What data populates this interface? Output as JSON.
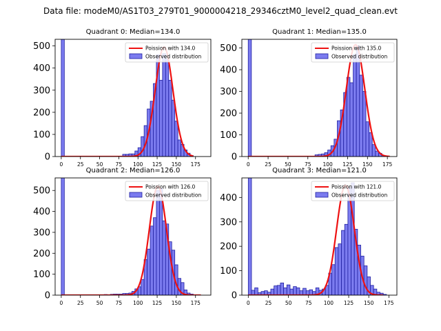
{
  "figure": {
    "suptitle": "Data file: modeM0/AS1T03_279T01_9000004218_29346cztM0_level2_quad_clean.evt"
  },
  "style": {
    "bar_fill": "#7b7bef",
    "bar_edge": "#1f1fa0",
    "curve_color": "#ee1111",
    "legend_border": "#cccccc"
  },
  "chart_data": [
    {
      "type": "bar",
      "title": "Quadrant 0: Median=134.0",
      "legend": [
        "Poission with 134.0",
        "Observed distribution"
      ],
      "legend_position": "top-right",
      "bin_width": 4,
      "xlim": [
        -8,
        195
      ],
      "ylim": [
        0,
        530
      ],
      "xticks": [
        0,
        25,
        50,
        75,
        100,
        125,
        150,
        175
      ],
      "yticks": [
        0,
        100,
        200,
        300,
        400,
        500
      ],
      "bins": [
        {
          "x": 0,
          "v": 530
        },
        {
          "x": 80,
          "v": 10
        },
        {
          "x": 84,
          "v": 10
        },
        {
          "x": 88,
          "v": 12
        },
        {
          "x": 92,
          "v": 12
        },
        {
          "x": 96,
          "v": 25
        },
        {
          "x": 100,
          "v": 40
        },
        {
          "x": 104,
          "v": 90
        },
        {
          "x": 108,
          "v": 140
        },
        {
          "x": 112,
          "v": 215
        },
        {
          "x": 116,
          "v": 250
        },
        {
          "x": 120,
          "v": 330
        },
        {
          "x": 124,
          "v": 460
        },
        {
          "x": 128,
          "v": 345
        },
        {
          "x": 132,
          "v": 465
        },
        {
          "x": 136,
          "v": 440
        },
        {
          "x": 140,
          "v": 345
        },
        {
          "x": 144,
          "v": 255
        },
        {
          "x": 148,
          "v": 160
        },
        {
          "x": 152,
          "v": 75
        },
        {
          "x": 156,
          "v": 55
        },
        {
          "x": 160,
          "v": 30
        },
        {
          "x": 164,
          "v": 15
        },
        {
          "x": 168,
          "v": 5
        }
      ],
      "poisson": {
        "mean": 134.0,
        "scale": 495,
        "sigma": 11.6,
        "x_range": [
          0,
          172
        ]
      }
    },
    {
      "type": "bar",
      "title": "Quadrant 1: Median=135.0",
      "legend": [
        "Poission with 135.0",
        "Observed distribution"
      ],
      "legend_position": "top-right",
      "bin_width": 4,
      "xlim": [
        -8,
        187
      ],
      "ylim": [
        0,
        540
      ],
      "xticks": [
        0,
        25,
        50,
        75,
        100,
        125,
        150,
        175
      ],
      "yticks": [
        0,
        100,
        200,
        300,
        400,
        500
      ],
      "bins": [
        {
          "x": 0,
          "v": 540
        },
        {
          "x": 84,
          "v": 8
        },
        {
          "x": 88,
          "v": 10
        },
        {
          "x": 92,
          "v": 12
        },
        {
          "x": 96,
          "v": 18
        },
        {
          "x": 100,
          "v": 30
        },
        {
          "x": 104,
          "v": 50
        },
        {
          "x": 108,
          "v": 80
        },
        {
          "x": 112,
          "v": 165
        },
        {
          "x": 116,
          "v": 215
        },
        {
          "x": 120,
          "v": 295
        },
        {
          "x": 124,
          "v": 365
        },
        {
          "x": 128,
          "v": 340
        },
        {
          "x": 132,
          "v": 470
        },
        {
          "x": 136,
          "v": 510
        },
        {
          "x": 140,
          "v": 375
        },
        {
          "x": 144,
          "v": 300
        },
        {
          "x": 148,
          "v": 160
        },
        {
          "x": 152,
          "v": 110
        },
        {
          "x": 156,
          "v": 55
        },
        {
          "x": 160,
          "v": 25
        },
        {
          "x": 164,
          "v": 15
        },
        {
          "x": 168,
          "v": 5
        }
      ],
      "poisson": {
        "mean": 135.0,
        "scale": 515,
        "sigma": 11.6,
        "x_range": [
          0,
          178
        ]
      }
    },
    {
      "type": "bar",
      "title": "Quadrant 2: Median=126.0",
      "legend": [
        "Poission with 126.0",
        "Observed distribution"
      ],
      "legend_position": "top-right",
      "bin_width": 4,
      "xlim": [
        -8,
        195
      ],
      "ylim": [
        0,
        560
      ],
      "xticks": [
        0,
        25,
        50,
        75,
        100,
        125,
        150,
        175
      ],
      "yticks": [
        0,
        100,
        200,
        300,
        400,
        500
      ],
      "bins": [
        {
          "x": 0,
          "v": 560
        },
        {
          "x": 56,
          "v": 3
        },
        {
          "x": 64,
          "v": 4
        },
        {
          "x": 68,
          "v": 5
        },
        {
          "x": 72,
          "v": 5
        },
        {
          "x": 76,
          "v": 5
        },
        {
          "x": 80,
          "v": 8
        },
        {
          "x": 84,
          "v": 8
        },
        {
          "x": 88,
          "v": 10
        },
        {
          "x": 92,
          "v": 18
        },
        {
          "x": 96,
          "v": 30
        },
        {
          "x": 100,
          "v": 40
        },
        {
          "x": 104,
          "v": 75
        },
        {
          "x": 108,
          "v": 170
        },
        {
          "x": 112,
          "v": 220
        },
        {
          "x": 116,
          "v": 330
        },
        {
          "x": 120,
          "v": 370
        },
        {
          "x": 124,
          "v": 500
        },
        {
          "x": 128,
          "v": 510
        },
        {
          "x": 132,
          "v": 355
        },
        {
          "x": 136,
          "v": 340
        },
        {
          "x": 140,
          "v": 255
        },
        {
          "x": 144,
          "v": 215
        },
        {
          "x": 148,
          "v": 145
        },
        {
          "x": 152,
          "v": 80
        },
        {
          "x": 156,
          "v": 60
        },
        {
          "x": 160,
          "v": 25
        },
        {
          "x": 164,
          "v": 10
        },
        {
          "x": 168,
          "v": 5
        }
      ],
      "poisson": {
        "mean": 126.0,
        "scale": 520,
        "sigma": 11.2,
        "x_range": [
          0,
          182
        ]
      }
    },
    {
      "type": "bar",
      "title": "Quadrant 3: Median=121.0",
      "legend": [
        "Poission with 121.0",
        "Observed distribution"
      ],
      "legend_position": "top-right",
      "bin_width": 4,
      "xlim": [
        -8,
        185
      ],
      "ylim": [
        0,
        480
      ],
      "xticks": [
        0,
        25,
        50,
        75,
        100,
        125,
        150,
        175
      ],
      "yticks": [
        0,
        100,
        200,
        300,
        400
      ],
      "bins": [
        {
          "x": 0,
          "v": 480
        },
        {
          "x": 4,
          "v": 20
        },
        {
          "x": 8,
          "v": 30
        },
        {
          "x": 12,
          "v": 10
        },
        {
          "x": 16,
          "v": 15
        },
        {
          "x": 20,
          "v": 18
        },
        {
          "x": 24,
          "v": 12
        },
        {
          "x": 28,
          "v": 25
        },
        {
          "x": 32,
          "v": 38
        },
        {
          "x": 36,
          "v": 40
        },
        {
          "x": 40,
          "v": 50
        },
        {
          "x": 44,
          "v": 30
        },
        {
          "x": 48,
          "v": 42
        },
        {
          "x": 52,
          "v": 25
        },
        {
          "x": 56,
          "v": 35
        },
        {
          "x": 60,
          "v": 30
        },
        {
          "x": 64,
          "v": 18
        },
        {
          "x": 68,
          "v": 28
        },
        {
          "x": 72,
          "v": 18
        },
        {
          "x": 76,
          "v": 22
        },
        {
          "x": 80,
          "v": 15
        },
        {
          "x": 84,
          "v": 30
        },
        {
          "x": 88,
          "v": 20
        },
        {
          "x": 92,
          "v": 25
        },
        {
          "x": 96,
          "v": 40
        },
        {
          "x": 100,
          "v": 90
        },
        {
          "x": 104,
          "v": 125
        },
        {
          "x": 108,
          "v": 195
        },
        {
          "x": 112,
          "v": 210
        },
        {
          "x": 116,
          "v": 265
        },
        {
          "x": 120,
          "v": 290
        },
        {
          "x": 124,
          "v": 440
        },
        {
          "x": 128,
          "v": 460
        },
        {
          "x": 132,
          "v": 270
        },
        {
          "x": 136,
          "v": 205
        },
        {
          "x": 140,
          "v": 160
        },
        {
          "x": 144,
          "v": 120
        },
        {
          "x": 148,
          "v": 75
        },
        {
          "x": 152,
          "v": 40
        },
        {
          "x": 156,
          "v": 25
        },
        {
          "x": 160,
          "v": 12
        },
        {
          "x": 164,
          "v": 8
        },
        {
          "x": 168,
          "v": 3
        }
      ],
      "poisson": {
        "mean": 121.0,
        "scale": 450,
        "sigma": 11.0,
        "x_range": [
          0,
          168
        ]
      }
    }
  ]
}
